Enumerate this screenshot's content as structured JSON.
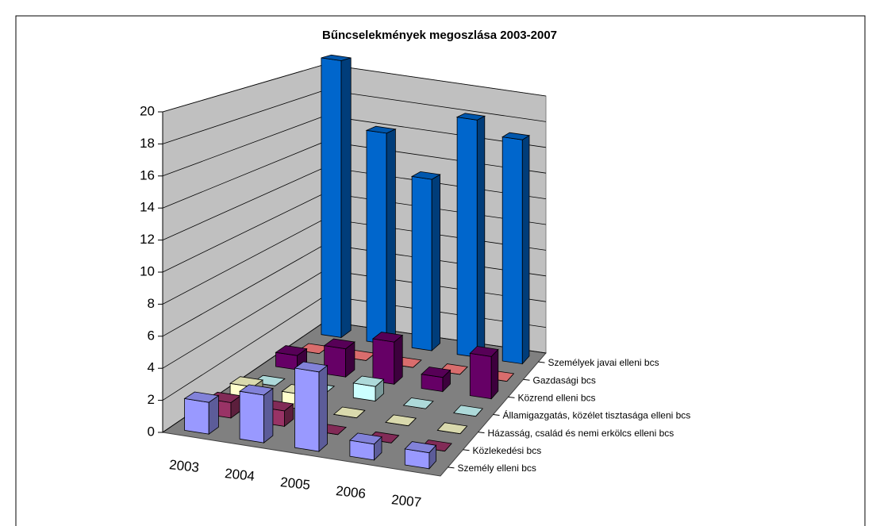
{
  "chart_data": {
    "type": "bar3d",
    "title": "Bűncselekmények megoszlása 2003-2007",
    "categories": [
      "2003",
      "2004",
      "2005",
      "2006",
      "2007"
    ],
    "series": [
      {
        "name": "Személy elleni bcs",
        "color": "#9999ff",
        "values": [
          2,
          3,
          5,
          1,
          1
        ]
      },
      {
        "name": "Közlekedési bcs",
        "color": "#993366",
        "values": [
          1,
          1,
          0,
          0,
          0
        ]
      },
      {
        "name": "Házasság, család és nemi erkölcs elleni bcs",
        "color": "#ffffcc",
        "values": [
          1,
          1,
          0,
          0,
          0
        ]
      },
      {
        "name": "Államigazgatás, közélet tisztasága elleni bcs",
        "color": "#ccffff",
        "values": [
          0,
          0,
          1,
          0,
          0
        ]
      },
      {
        "name": "Közrend elleni bcs",
        "color": "#660066",
        "values": [
          1,
          2,
          3,
          1,
          3
        ]
      },
      {
        "name": "Gazdasági bcs",
        "color": "#ff8080",
        "values": [
          0,
          0,
          0,
          0,
          0
        ]
      },
      {
        "name": "Személyek javai elleni bcs",
        "color": "#0066cc",
        "values": [
          21,
          16,
          13,
          18,
          17
        ]
      }
    ],
    "ylim": [
      0,
      20
    ],
    "yticks": [
      0,
      2,
      4,
      6,
      8,
      10,
      12,
      14,
      16,
      18,
      20
    ],
    "grid": true
  }
}
